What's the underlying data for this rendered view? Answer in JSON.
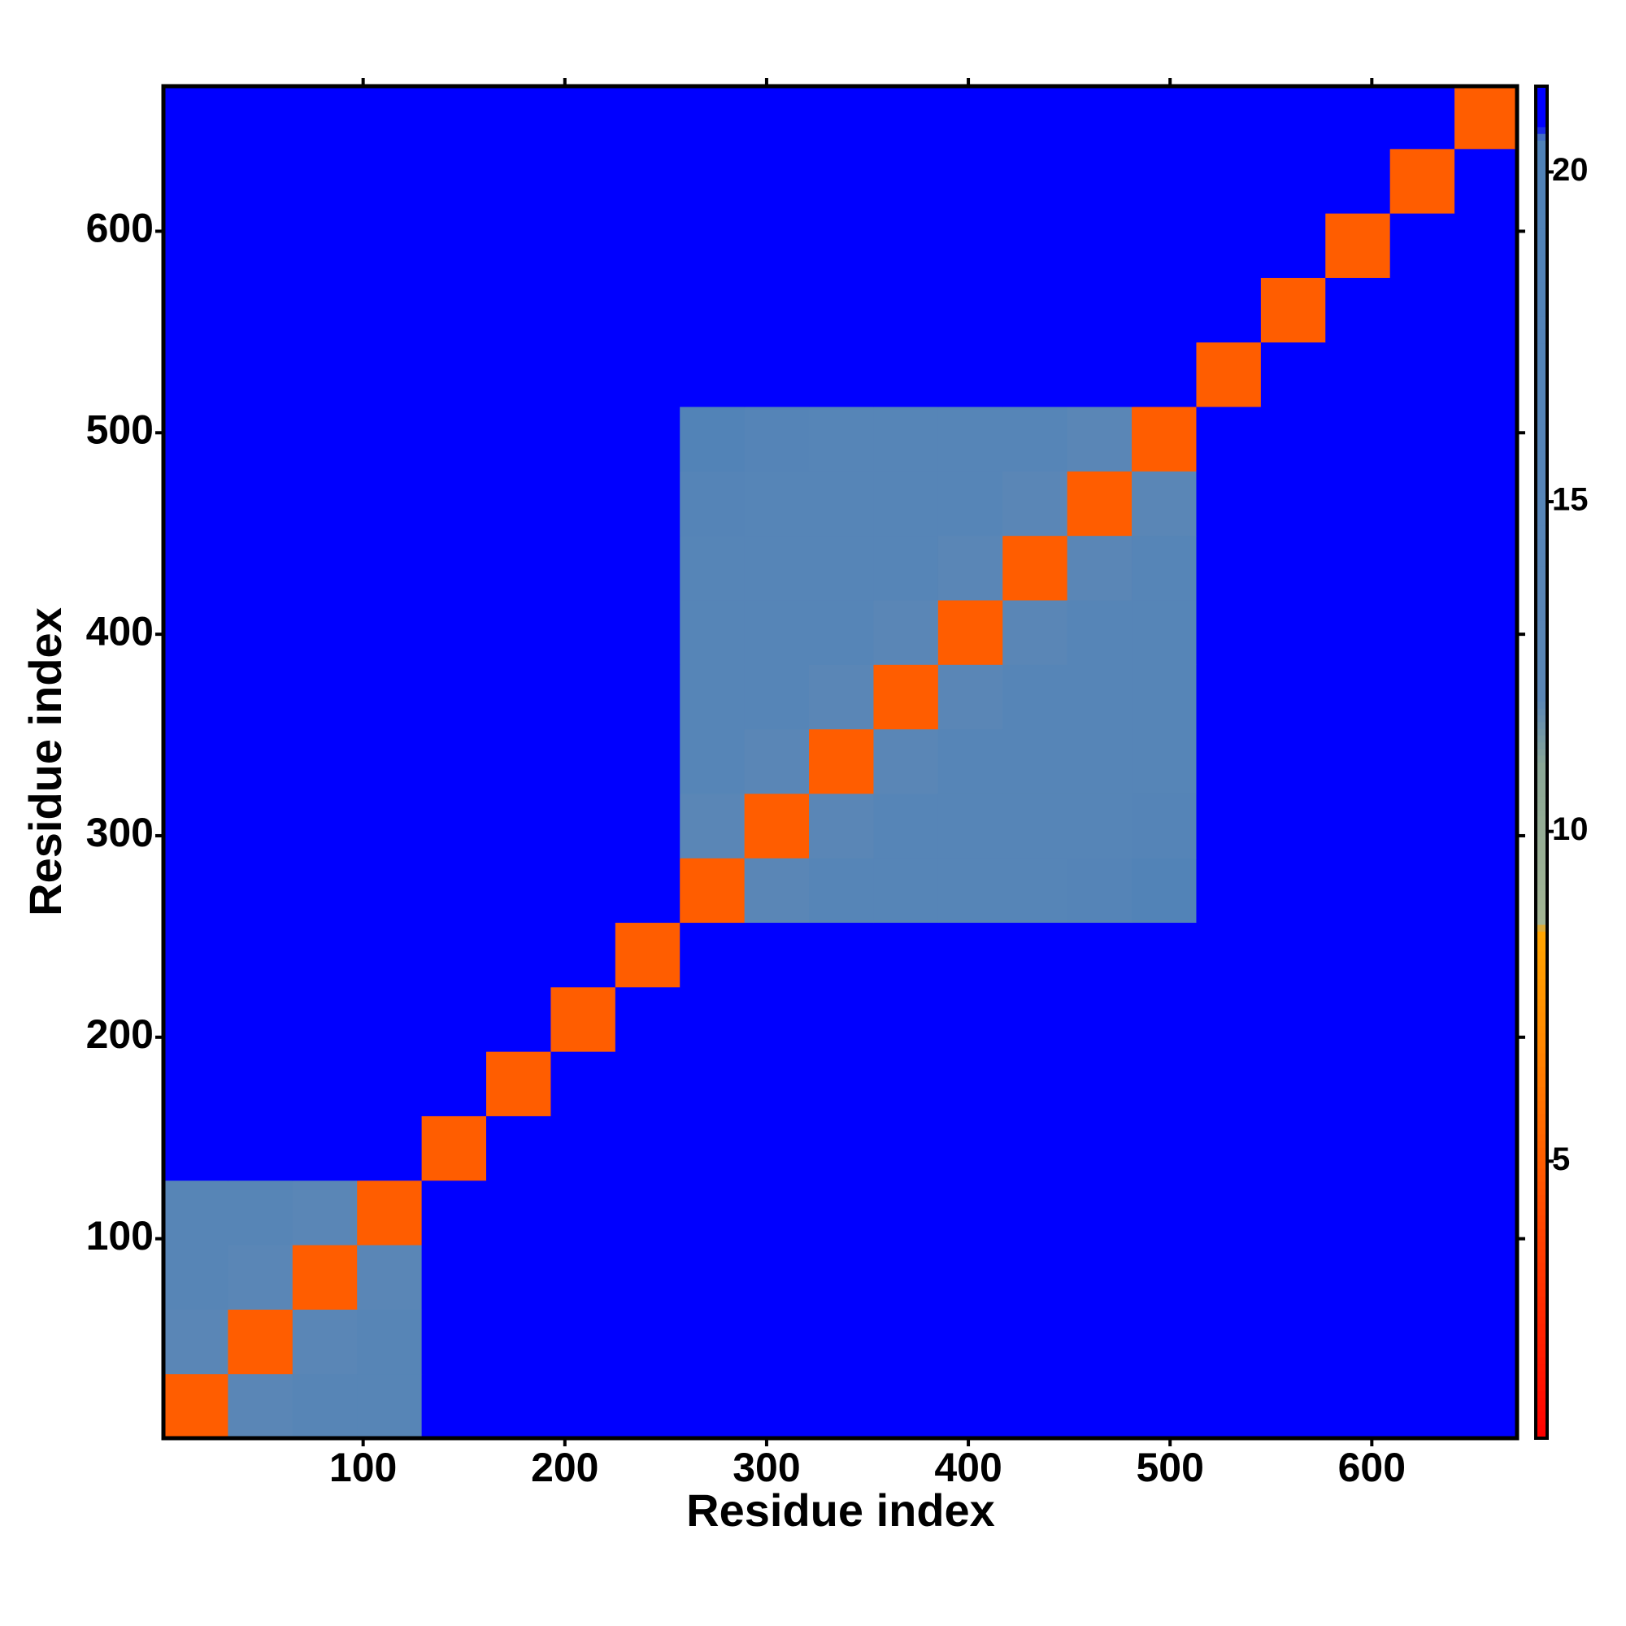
{
  "chart_data": {
    "type": "heatmap",
    "x_label": "Residue index",
    "y_label": "Residue index",
    "xlim": [
      1,
      672
    ],
    "ylim": [
      1,
      672
    ],
    "xticks": [
      100,
      200,
      300,
      400,
      500,
      600
    ],
    "yticks": [
      100,
      200,
      300,
      400,
      500,
      600
    ],
    "x_bins": [
      1,
      33,
      65,
      97,
      129,
      161,
      193,
      225,
      257,
      289,
      321,
      353,
      385,
      417,
      449,
      481,
      513,
      545,
      577,
      609,
      641,
      672
    ],
    "y_bins": [
      1,
      33,
      65,
      97,
      129,
      161,
      193,
      225,
      257,
      289,
      321,
      353,
      385,
      417,
      449,
      481,
      513,
      545,
      577,
      609,
      641,
      672
    ],
    "z": [
      [
        5,
        12,
        14,
        14,
        21,
        21,
        21,
        21,
        21,
        21,
        21,
        21,
        21,
        21,
        21,
        21,
        21,
        21,
        21,
        21,
        21
      ],
      [
        12,
        5,
        12,
        14,
        21,
        21,
        21,
        21,
        21,
        21,
        21,
        21,
        21,
        21,
        21,
        21,
        21,
        21,
        21,
        21,
        21
      ],
      [
        14,
        12,
        5,
        12,
        21,
        21,
        21,
        21,
        21,
        21,
        21,
        21,
        21,
        21,
        21,
        21,
        21,
        21,
        21,
        21,
        21
      ],
      [
        14,
        14,
        12,
        5,
        21,
        21,
        21,
        21,
        21,
        21,
        21,
        21,
        21,
        21,
        21,
        21,
        21,
        21,
        21,
        21,
        21
      ],
      [
        21,
        21,
        21,
        21,
        5,
        21,
        21,
        21,
        21,
        21,
        21,
        21,
        21,
        21,
        21,
        21,
        21,
        21,
        21,
        21,
        21
      ],
      [
        21,
        21,
        21,
        21,
        21,
        5,
        21,
        21,
        21,
        21,
        21,
        21,
        21,
        21,
        21,
        21,
        21,
        21,
        21,
        21,
        21
      ],
      [
        21,
        21,
        21,
        21,
        21,
        21,
        5,
        21,
        21,
        21,
        21,
        21,
        21,
        21,
        21,
        21,
        21,
        21,
        21,
        21,
        21
      ],
      [
        21,
        21,
        21,
        21,
        21,
        21,
        21,
        5,
        21,
        21,
        21,
        21,
        21,
        21,
        21,
        21,
        21,
        21,
        21,
        21,
        21
      ],
      [
        21,
        21,
        21,
        21,
        21,
        21,
        21,
        21,
        5,
        12,
        15,
        15,
        15,
        15,
        16,
        18,
        21,
        21,
        21,
        21,
        21
      ],
      [
        21,
        21,
        21,
        21,
        21,
        21,
        21,
        21,
        12,
        5,
        12,
        15,
        15,
        15,
        15,
        16,
        21,
        21,
        21,
        21,
        21
      ],
      [
        21,
        21,
        21,
        21,
        21,
        21,
        21,
        21,
        15,
        12,
        5,
        12,
        15,
        15,
        15,
        15,
        21,
        21,
        21,
        21,
        21
      ],
      [
        21,
        21,
        21,
        21,
        21,
        21,
        21,
        21,
        15,
        15,
        12,
        5,
        12,
        15,
        15,
        15,
        21,
        21,
        21,
        21,
        21
      ],
      [
        21,
        21,
        21,
        21,
        21,
        21,
        21,
        21,
        15,
        15,
        15,
        12,
        5,
        12,
        15,
        15,
        21,
        21,
        21,
        21,
        21
      ],
      [
        21,
        21,
        21,
        21,
        21,
        21,
        21,
        21,
        15,
        15,
        15,
        15,
        12,
        5,
        12,
        15,
        21,
        21,
        21,
        21,
        21
      ],
      [
        21,
        21,
        21,
        21,
        21,
        21,
        21,
        21,
        16,
        15,
        15,
        15,
        15,
        12,
        5,
        12,
        21,
        21,
        21,
        21,
        21
      ],
      [
        21,
        21,
        21,
        21,
        21,
        21,
        21,
        21,
        18,
        16,
        15,
        15,
        15,
        15,
        12,
        5,
        21,
        21,
        21,
        21,
        21
      ],
      [
        21,
        21,
        21,
        21,
        21,
        21,
        21,
        21,
        21,
        21,
        21,
        21,
        21,
        21,
        21,
        21,
        5,
        21,
        21,
        21,
        21
      ],
      [
        21,
        21,
        21,
        21,
        21,
        21,
        21,
        21,
        21,
        21,
        21,
        21,
        21,
        21,
        21,
        21,
        21,
        5,
        21,
        21,
        21
      ],
      [
        21,
        21,
        21,
        21,
        21,
        21,
        21,
        21,
        21,
        21,
        21,
        21,
        21,
        21,
        21,
        21,
        21,
        21,
        5,
        21,
        21
      ],
      [
        21,
        21,
        21,
        21,
        21,
        21,
        21,
        21,
        21,
        21,
        21,
        21,
        21,
        21,
        21,
        21,
        21,
        21,
        21,
        5,
        21
      ],
      [
        21,
        21,
        21,
        21,
        21,
        21,
        21,
        21,
        21,
        21,
        21,
        21,
        21,
        21,
        21,
        21,
        21,
        21,
        21,
        21,
        5
      ]
    ],
    "clim": [
      0.8,
      21.3
    ],
    "cticks": [
      5,
      10,
      15,
      20
    ],
    "colorscale": [
      [
        0.8,
        "#ff0000"
      ],
      [
        4,
        "#ff4500"
      ],
      [
        7,
        "#ff8c00"
      ],
      [
        8.5,
        "#ffa500"
      ],
      [
        8.6,
        "#a3b593"
      ],
      [
        11,
        "#8aa796"
      ],
      [
        12,
        "#5a86b6"
      ],
      [
        20.5,
        "#4f82b8"
      ],
      [
        20.7,
        "#0000ff"
      ],
      [
        21.3,
        "#0000ff"
      ]
    ]
  }
}
